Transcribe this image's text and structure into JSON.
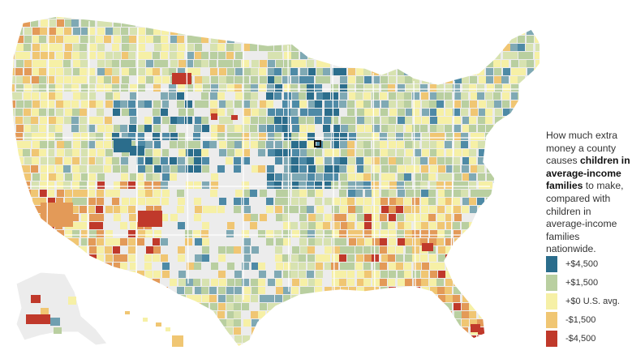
{
  "caption": {
    "part1": "How much extra money a county causes ",
    "bold": "children in average-income families",
    "part2": " to make, compared with children in average-income families nationwide."
  },
  "legend": [
    {
      "label": "+$4,500",
      "color": "#2b6d8c"
    },
    {
      "label": "+$1,500",
      "color": "#b9cfa0"
    },
    {
      "label": "+$0 U.S. avg.",
      "color": "#f6f0a6"
    },
    {
      "label": "-$1,500",
      "color": "#f0c673"
    },
    {
      "label": "-$4,500",
      "color": "#c0392b"
    }
  ],
  "map": {
    "no_data_color": "#ececec",
    "border_color": "#ffffff",
    "highlighted_county_outline": "#111111"
  }
}
